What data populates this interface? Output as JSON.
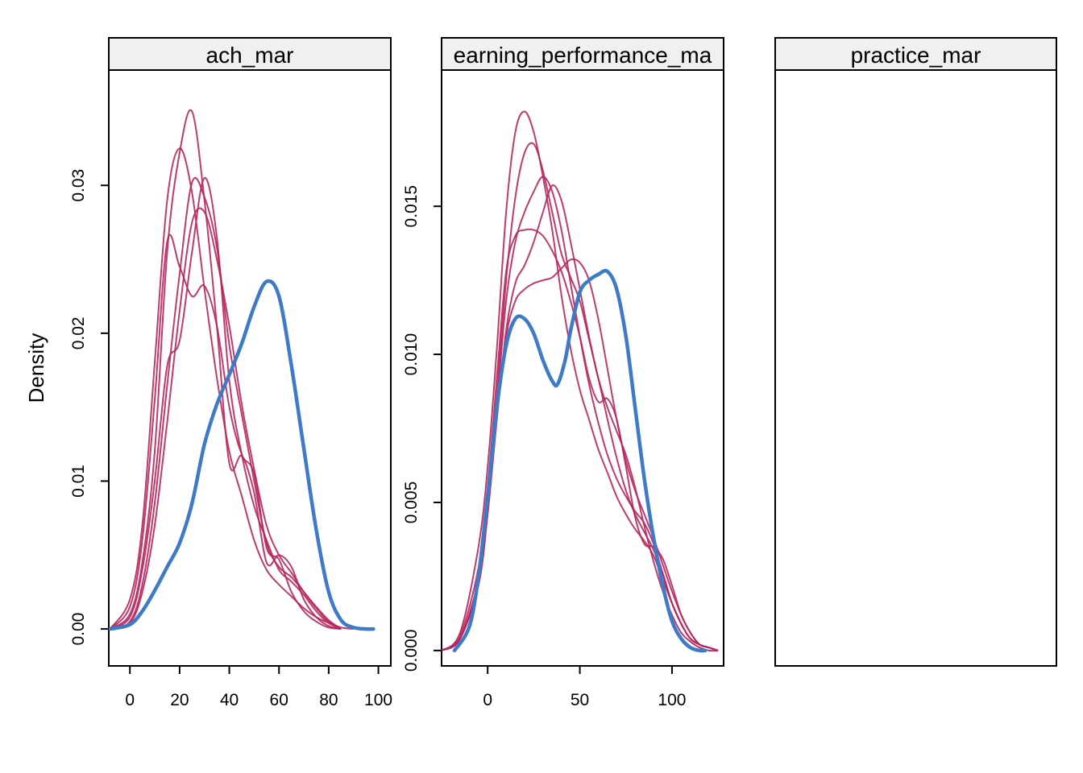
{
  "chart_data": {
    "type": "line",
    "ylabel": "Density",
    "colors": {
      "observed": "#3E7BC7",
      "imputed": "#B5275E"
    },
    "panels": [
      {
        "strip": "ach_mar",
        "xlim": [
          -8.5,
          105
        ],
        "ylim": [
          -0.0025,
          0.0378
        ],
        "xticks": [
          0,
          20,
          40,
          60,
          80,
          100
        ],
        "yticks": [
          0.0,
          0.01,
          0.02,
          0.03
        ],
        "ytick_labels": [
          "0.00",
          "0.01",
          "0.02",
          "0.03"
        ],
        "observed": {
          "x": [
            -8,
            0,
            5,
            10,
            15,
            20,
            25,
            30,
            35,
            40,
            45,
            50,
            55,
            60,
            65,
            70,
            75,
            80,
            85,
            90,
            95,
            98
          ],
          "y": [
            0.0,
            0.0003,
            0.0012,
            0.0026,
            0.0042,
            0.0058,
            0.0085,
            0.0125,
            0.0152,
            0.0172,
            0.0193,
            0.0218,
            0.0235,
            0.0225,
            0.0178,
            0.0122,
            0.0067,
            0.0025,
            0.0006,
            0.0001,
            0.0,
            0.0
          ]
        },
        "imputed": [
          {
            "x": [
              -8,
              0,
              5,
              10,
              15,
              20,
              25,
              30,
              35,
              40,
              45,
              50,
              55,
              60,
              65,
              70,
              75,
              80,
              85,
              90
            ],
            "y": [
              0.0,
              0.002,
              0.007,
              0.018,
              0.029,
              0.0325,
              0.0295,
              0.023,
              0.017,
              0.012,
              0.009,
              0.006,
              0.004,
              0.003,
              0.0022,
              0.0014,
              0.0008,
              0.0004,
              0.0001,
              0.0
            ]
          },
          {
            "x": [
              -8,
              0,
              5,
              10,
              15,
              20,
              25,
              30,
              35,
              40,
              45,
              50,
              55,
              60,
              65,
              70,
              75,
              80,
              85
            ],
            "y": [
              0.0,
              0.0015,
              0.006,
              0.0155,
              0.0262,
              0.0245,
              0.0225,
              0.0232,
              0.0205,
              0.015,
              0.0118,
              0.0105,
              0.0055,
              0.0047,
              0.0025,
              0.0012,
              0.0005,
              0.0001,
              0.0
            ]
          },
          {
            "x": [
              -8,
              0,
              5,
              10,
              15,
              20,
              25,
              30,
              35,
              40,
              45,
              50,
              55,
              60,
              65,
              70,
              75,
              80,
              85
            ],
            "y": [
              0.0,
              0.001,
              0.0045,
              0.012,
              0.0255,
              0.0322,
              0.035,
              0.029,
              0.0205,
              0.0112,
              0.0117,
              0.0092,
              0.0045,
              0.005,
              0.0042,
              0.002,
              0.0008,
              0.0002,
              0.0
            ]
          },
          {
            "x": [
              -8,
              0,
              5,
              10,
              15,
              20,
              25,
              30,
              35,
              40,
              45,
              50,
              55,
              60,
              65,
              70,
              75,
              80,
              85
            ],
            "y": [
              0.0,
              0.0008,
              0.004,
              0.01,
              0.0178,
              0.0195,
              0.0255,
              0.0305,
              0.0265,
              0.0168,
              0.0118,
              0.0083,
              0.006,
              0.004,
              0.0032,
              0.0023,
              0.0012,
              0.0004,
              0.0
            ]
          },
          {
            "x": [
              -8,
              0,
              5,
              10,
              15,
              20,
              25,
              30,
              35,
              40,
              45,
              50,
              55,
              60,
              65,
              70,
              75,
              80,
              85
            ],
            "y": [
              0.0,
              0.0005,
              0.003,
              0.0085,
              0.0165,
              0.024,
              0.0302,
              0.0292,
              0.0258,
              0.0192,
              0.0145,
              0.01,
              0.0058,
              0.0042,
              0.0035,
              0.0025,
              0.0015,
              0.0006,
              0.0
            ]
          },
          {
            "x": [
              -8,
              0,
              5,
              10,
              15,
              20,
              25,
              30,
              35,
              40,
              45,
              50,
              55,
              60,
              65,
              70,
              75,
              80,
              85
            ],
            "y": [
              0.0,
              0.0004,
              0.0025,
              0.007,
              0.014,
              0.0215,
              0.0275,
              0.0282,
              0.025,
              0.0205,
              0.0152,
              0.0108,
              0.007,
              0.005,
              0.0038,
              0.0025,
              0.0014,
              0.0005,
              0.0
            ]
          }
        ]
      },
      {
        "strip": "earning_performance_ma",
        "xlim": [
          -25,
          128
        ],
        "ylim": [
          -0.00052,
          0.0196
        ],
        "xticks": [
          0,
          50,
          100
        ],
        "yticks": [
          0.0,
          0.005,
          0.01,
          0.015
        ],
        "ytick_labels": [
          "0.000",
          "0.005",
          "0.010",
          "0.015"
        ],
        "observed": {
          "x": [
            -18,
            -10,
            -5,
            0,
            5,
            10,
            15,
            20,
            25,
            30,
            35,
            38,
            42,
            45,
            50,
            55,
            60,
            65,
            70,
            75,
            80,
            85,
            90,
            95,
            100,
            105,
            110,
            115,
            118
          ],
          "y": [
            0.0,
            0.0008,
            0.0025,
            0.0052,
            0.0082,
            0.0103,
            0.0112,
            0.0112,
            0.0107,
            0.0098,
            0.0091,
            0.009,
            0.0098,
            0.0108,
            0.0121,
            0.0125,
            0.0127,
            0.0128,
            0.0122,
            0.0106,
            0.0082,
            0.0058,
            0.0038,
            0.0022,
            0.001,
            0.0004,
            0.0001,
            0.0,
            0.0
          ]
        },
        "imputed": [
          {
            "x": [
              -25,
              -15,
              -5,
              0,
              5,
              10,
              15,
              20,
              25,
              30,
              35,
              40,
              45,
              50,
              55,
              60,
              65,
              70,
              75,
              80,
              85,
              90,
              95,
              100,
              105,
              110,
              115,
              120,
              125
            ],
            "y": [
              0.0,
              0.0006,
              0.0035,
              0.0062,
              0.0102,
              0.0148,
              0.0175,
              0.0182,
              0.0175,
              0.016,
              0.0142,
              0.012,
              0.0102,
              0.0088,
              0.0078,
              0.0068,
              0.006,
              0.0052,
              0.0046,
              0.0041,
              0.0037,
              0.0032,
              0.0024,
              0.0016,
              0.0009,
              0.0004,
              0.0002,
              0.0001,
              0.0
            ]
          },
          {
            "x": [
              -25,
              -15,
              -5,
              0,
              5,
              10,
              15,
              20,
              25,
              30,
              35,
              40,
              45,
              50,
              55,
              60,
              65,
              70,
              75,
              80,
              85,
              90,
              95,
              100,
              105,
              110,
              115,
              120,
              125
            ],
            "y": [
              0.0,
              0.0005,
              0.0028,
              0.0055,
              0.0092,
              0.0128,
              0.014,
              0.0142,
              0.0142,
              0.014,
              0.0135,
              0.0128,
              0.0118,
              0.0106,
              0.0092,
              0.0084,
              0.0085,
              0.0078,
              0.0062,
              0.0045,
              0.0036,
              0.0035,
              0.0031,
              0.0022,
              0.0012,
              0.0006,
              0.0002,
              0.0001,
              0.0
            ]
          },
          {
            "x": [
              -25,
              -15,
              -5,
              0,
              5,
              10,
              15,
              20,
              25,
              30,
              35,
              40,
              45,
              50,
              55,
              60,
              65,
              70,
              75,
              80,
              85,
              90,
              95,
              100,
              105,
              110,
              115,
              120,
              125
            ],
            "y": [
              0.0,
              0.0004,
              0.0024,
              0.005,
              0.0086,
              0.0125,
              0.0153,
              0.0168,
              0.0171,
              0.0162,
              0.0148,
              0.0134,
              0.0126,
              0.0118,
              0.0105,
              0.0092,
              0.0078,
              0.0065,
              0.0054,
              0.0046,
              0.004,
              0.0034,
              0.0026,
              0.0016,
              0.0009,
              0.0004,
              0.0002,
              0.0001,
              0.0
            ]
          },
          {
            "x": [
              -25,
              -15,
              -5,
              0,
              5,
              10,
              15,
              20,
              25,
              30,
              35,
              40,
              45,
              50,
              55,
              60,
              65,
              70,
              75,
              80,
              85,
              90,
              95,
              100,
              105,
              110,
              115,
              120,
              125
            ],
            "y": [
              0.0,
              0.0004,
              0.0022,
              0.0046,
              0.0078,
              0.0108,
              0.0124,
              0.013,
              0.0138,
              0.0148,
              0.0157,
              0.0152,
              0.0138,
              0.0122,
              0.0106,
              0.0092,
              0.0082,
              0.0074,
              0.0066,
              0.0055,
              0.0042,
              0.003,
              0.002,
              0.0012,
              0.0006,
              0.0003,
              0.0001,
              0.0,
              0.0
            ]
          },
          {
            "x": [
              -25,
              -15,
              -5,
              0,
              5,
              10,
              15,
              20,
              25,
              30,
              35,
              40,
              45,
              50,
              55,
              60,
              65,
              70,
              75,
              80,
              85,
              90,
              95,
              100,
              105,
              110,
              115,
              120,
              125
            ],
            "y": [
              0.0,
              0.0004,
              0.0023,
              0.0048,
              0.008,
              0.0106,
              0.0118,
              0.0122,
              0.0124,
              0.0125,
              0.0126,
              0.0129,
              0.0132,
              0.0131,
              0.0125,
              0.0112,
              0.0095,
              0.0078,
              0.0064,
              0.0054,
              0.0046,
              0.0038,
              0.0029,
              0.002,
              0.0012,
              0.0006,
              0.0002,
              0.0001,
              0.0
            ]
          },
          {
            "x": [
              -25,
              -15,
              -5,
              0,
              5,
              10,
              15,
              20,
              25,
              30,
              35,
              40,
              45,
              50,
              55,
              60,
              65,
              70,
              75,
              80,
              85,
              90,
              95,
              100,
              105,
              110,
              115,
              120,
              125
            ],
            "y": [
              0.0,
              0.0004,
              0.0024,
              0.0049,
              0.0083,
              0.0118,
              0.0138,
              0.0148,
              0.0155,
              0.016,
              0.0155,
              0.0142,
              0.0124,
              0.0106,
              0.009,
              0.0077,
              0.0066,
              0.0058,
              0.0052,
              0.0047,
              0.0043,
              0.0036,
              0.0026,
              0.0016,
              0.0009,
              0.0004,
              0.0002,
              0.0001,
              0.0
            ]
          }
        ]
      },
      {
        "strip": "practice_mar",
        "xlim": [
          0,
          1
        ],
        "ylim": [
          0,
          1
        ],
        "xticks": [],
        "yticks": [],
        "ytick_labels": [],
        "observed": null,
        "imputed": []
      }
    ]
  }
}
